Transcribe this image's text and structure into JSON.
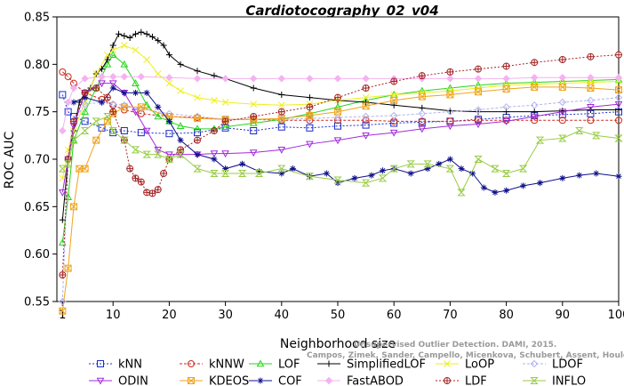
{
  "chart_data": {
    "type": "line",
    "title": "Cardiotocography_02_v04",
    "xlabel": "Neighborhood size",
    "ylabel": "ROC AUC",
    "xlim": [
      0,
      100
    ],
    "ylim": [
      0.55,
      0.85
    ],
    "xticks": [
      1,
      10,
      20,
      30,
      40,
      50,
      60,
      70,
      80,
      90,
      100
    ],
    "yticks": [
      0.55,
      0.6,
      0.65,
      0.7,
      0.75,
      0.8,
      0.85
    ],
    "ytick_labels": [
      "0.55",
      "0.60",
      "0.65",
      "0.70",
      "0.75",
      "0.80",
      "0.85"
    ],
    "grid": false,
    "legend_position": "bottom",
    "series": [
      {
        "name": "kNN",
        "color": "#1a2ccc",
        "marker": "square",
        "dash": "2,2",
        "x": [
          1,
          2,
          3,
          5,
          8,
          10,
          12,
          15,
          20,
          25,
          30,
          35,
          40,
          45,
          50,
          55,
          60,
          65,
          70,
          75,
          80,
          85,
          90,
          95,
          100
        ],
        "y": [
          0.768,
          0.75,
          0.745,
          0.74,
          0.733,
          0.728,
          0.73,
          0.728,
          0.727,
          0.728,
          0.733,
          0.73,
          0.734,
          0.733,
          0.735,
          0.736,
          0.738,
          0.739,
          0.74,
          0.742,
          0.744,
          0.746,
          0.747,
          0.748,
          0.75
        ]
      },
      {
        "name": "kNNW",
        "color": "#cc2a1e",
        "marker": "circle",
        "dash": "3,2",
        "x": [
          1,
          2,
          3,
          5,
          8,
          10,
          12,
          15,
          20,
          25,
          30,
          35,
          40,
          45,
          50,
          55,
          60,
          65,
          70,
          75,
          80,
          85,
          90,
          95,
          100
        ],
        "y": [
          0.792,
          0.787,
          0.78,
          0.77,
          0.763,
          0.757,
          0.752,
          0.748,
          0.745,
          0.744,
          0.742,
          0.742,
          0.741,
          0.741,
          0.741,
          0.741,
          0.74,
          0.74,
          0.74,
          0.741,
          0.741,
          0.741,
          0.741,
          0.741,
          0.741
        ]
      },
      {
        "name": "LOF",
        "color": "#27d41b",
        "marker": "triangle",
        "dash": "",
        "x": [
          1,
          2,
          3,
          5,
          7,
          9,
          10,
          12,
          14,
          16,
          18,
          20,
          22,
          25,
          28,
          30,
          35,
          40,
          45,
          50,
          55,
          60,
          65,
          70,
          75,
          80,
          85,
          90,
          95,
          100
        ],
        "y": [
          0.612,
          0.66,
          0.72,
          0.75,
          0.775,
          0.8,
          0.81,
          0.8,
          0.78,
          0.757,
          0.745,
          0.74,
          0.735,
          0.732,
          0.732,
          0.734,
          0.738,
          0.742,
          0.748,
          0.755,
          0.762,
          0.768,
          0.772,
          0.775,
          0.778,
          0.78,
          0.781,
          0.782,
          0.783,
          0.784
        ]
      },
      {
        "name": "SimplifiedLOF",
        "color": "#000000",
        "marker": "plus",
        "dash": "",
        "x": [
          1,
          2,
          3,
          4,
          5,
          6,
          7,
          8,
          9,
          10,
          11,
          12,
          13,
          14,
          15,
          16,
          17,
          18,
          19,
          20,
          22,
          25,
          28,
          30,
          35,
          40,
          45,
          50,
          55,
          60,
          65,
          70,
          75,
          80,
          85,
          90,
          95,
          100
        ],
        "y": [
          0.636,
          0.7,
          0.73,
          0.76,
          0.77,
          0.775,
          0.79,
          0.795,
          0.805,
          0.82,
          0.832,
          0.83,
          0.828,
          0.832,
          0.834,
          0.832,
          0.829,
          0.825,
          0.82,
          0.81,
          0.8,
          0.793,
          0.788,
          0.785,
          0.775,
          0.768,
          0.765,
          0.762,
          0.76,
          0.757,
          0.754,
          0.751,
          0.75,
          0.75,
          0.75,
          0.751,
          0.752,
          0.752
        ]
      },
      {
        "name": "LoOP",
        "color": "#f0ee1c",
        "marker": "x",
        "dash": "",
        "x": [
          1,
          2,
          3,
          5,
          7,
          9,
          10,
          12,
          14,
          16,
          18,
          20,
          22,
          25,
          28,
          30,
          35,
          40,
          45,
          50,
          55,
          60,
          65,
          70,
          75,
          80,
          85,
          90,
          95,
          100
        ],
        "y": [
          0.68,
          0.71,
          0.73,
          0.76,
          0.79,
          0.81,
          0.815,
          0.82,
          0.815,
          0.805,
          0.79,
          0.78,
          0.772,
          0.765,
          0.762,
          0.76,
          0.758,
          0.757,
          0.758,
          0.762,
          0.765,
          0.768,
          0.77,
          0.772,
          0.775,
          0.778,
          0.779,
          0.78,
          0.781,
          0.782
        ]
      },
      {
        "name": "LDOF",
        "color": "#b2b2f0",
        "marker": "diamond",
        "dash": "3,2",
        "x": [
          1,
          2,
          3,
          5,
          8,
          10,
          12,
          15,
          20,
          25,
          30,
          35,
          40,
          45,
          50,
          55,
          60,
          65,
          70,
          75,
          80,
          85,
          90,
          95,
          100
        ],
        "y": [
          0.55,
          0.7,
          0.74,
          0.758,
          0.76,
          0.758,
          0.757,
          0.753,
          0.748,
          0.745,
          0.742,
          0.742,
          0.742,
          0.743,
          0.744,
          0.745,
          0.746,
          0.748,
          0.75,
          0.752,
          0.755,
          0.757,
          0.76,
          0.762,
          0.765
        ]
      },
      {
        "name": "ODIN",
        "color": "#a22bd8",
        "marker": "triangle-down",
        "dash": "",
        "x": [
          1,
          2,
          3,
          5,
          8,
          10,
          12,
          14,
          16,
          18,
          20,
          22,
          25,
          28,
          30,
          35,
          40,
          45,
          50,
          55,
          60,
          65,
          70,
          75,
          80,
          85,
          90,
          95,
          100
        ],
        "y": [
          0.665,
          0.7,
          0.735,
          0.77,
          0.78,
          0.78,
          0.77,
          0.75,
          0.73,
          0.71,
          0.705,
          0.705,
          0.705,
          0.706,
          0.706,
          0.707,
          0.71,
          0.716,
          0.72,
          0.725,
          0.728,
          0.732,
          0.735,
          0.737,
          0.74,
          0.745,
          0.75,
          0.755,
          0.758
        ]
      },
      {
        "name": "KDEOS",
        "color": "#f0a31c",
        "marker": "square-x",
        "dash": "",
        "x": [
          1,
          2,
          3,
          4,
          5,
          7,
          9,
          10,
          12,
          15,
          20,
          25,
          30,
          35,
          40,
          45,
          50,
          55,
          60,
          65,
          70,
          75,
          80,
          85,
          90,
          95,
          100
        ],
        "y": [
          0.54,
          0.585,
          0.65,
          0.69,
          0.69,
          0.72,
          0.74,
          0.748,
          0.755,
          0.755,
          0.745,
          0.743,
          0.742,
          0.742,
          0.743,
          0.746,
          0.75,
          0.756,
          0.762,
          0.766,
          0.768,
          0.771,
          0.774,
          0.776,
          0.776,
          0.775,
          0.773
        ]
      },
      {
        "name": "COF",
        "color": "#10108c",
        "marker": "asterisk",
        "dash": "",
        "x": [
          3,
          5,
          8,
          10,
          12,
          14,
          16,
          18,
          20,
          22,
          25,
          28,
          30,
          33,
          36,
          40,
          42,
          45,
          48,
          50,
          53,
          56,
          58,
          60,
          63,
          66,
          68,
          70,
          72,
          74,
          76,
          78,
          80,
          83,
          86,
          90,
          93,
          96,
          100
        ],
        "y": [
          0.76,
          0.765,
          0.76,
          0.775,
          0.77,
          0.77,
          0.77,
          0.755,
          0.74,
          0.72,
          0.705,
          0.7,
          0.69,
          0.695,
          0.687,
          0.685,
          0.69,
          0.682,
          0.685,
          0.675,
          0.68,
          0.683,
          0.688,
          0.69,
          0.685,
          0.69,
          0.695,
          0.7,
          0.69,
          0.685,
          0.67,
          0.665,
          0.667,
          0.672,
          0.675,
          0.68,
          0.683,
          0.685,
          0.682
        ]
      },
      {
        "name": "FastABOD",
        "color": "#f4b2f0",
        "marker": "diamond-fill",
        "dash": "",
        "x": [
          1,
          2,
          3,
          5,
          8,
          10,
          12,
          15,
          20,
          25,
          30,
          35,
          40,
          45,
          50,
          55,
          60,
          65,
          70,
          75,
          80,
          85,
          90,
          95,
          100
        ],
        "y": [
          0.73,
          0.76,
          0.775,
          0.785,
          0.787,
          0.787,
          0.787,
          0.787,
          0.786,
          0.785,
          0.785,
          0.785,
          0.785,
          0.785,
          0.785,
          0.785,
          0.785,
          0.785,
          0.785,
          0.785,
          0.785,
          0.786,
          0.786,
          0.786,
          0.786
        ]
      },
      {
        "name": "LDF",
        "color": "#a42424",
        "marker": "circle-plus",
        "dash": "2,2",
        "x": [
          1,
          2,
          3,
          5,
          7,
          9,
          10,
          12,
          13,
          14,
          15,
          16,
          17,
          18,
          19,
          20,
          22,
          25,
          28,
          30,
          35,
          40,
          45,
          50,
          55,
          60,
          65,
          70,
          75,
          80,
          85,
          90,
          95,
          100
        ],
        "y": [
          0.578,
          0.7,
          0.74,
          0.77,
          0.775,
          0.765,
          0.75,
          0.72,
          0.69,
          0.68,
          0.676,
          0.665,
          0.664,
          0.668,
          0.685,
          0.7,
          0.71,
          0.72,
          0.73,
          0.74,
          0.745,
          0.75,
          0.755,
          0.765,
          0.775,
          0.782,
          0.788,
          0.792,
          0.795,
          0.798,
          0.802,
          0.805,
          0.808,
          0.81
        ]
      },
      {
        "name": "INFLO",
        "color": "#98cc44",
        "marker": "hourglass",
        "dash": "",
        "x": [
          1,
          2,
          3,
          5,
          7,
          9,
          10,
          12,
          14,
          16,
          18,
          20,
          22,
          25,
          28,
          30,
          33,
          36,
          40,
          45,
          50,
          55,
          58,
          60,
          63,
          66,
          70,
          72,
          75,
          78,
          80,
          83,
          86,
          90,
          93,
          96,
          100
        ],
        "y": [
          0.69,
          0.695,
          0.72,
          0.73,
          0.74,
          0.745,
          0.73,
          0.72,
          0.71,
          0.705,
          0.705,
          0.7,
          0.705,
          0.69,
          0.685,
          0.685,
          0.685,
          0.685,
          0.69,
          0.682,
          0.678,
          0.675,
          0.68,
          0.69,
          0.695,
          0.695,
          0.69,
          0.665,
          0.7,
          0.69,
          0.685,
          0.69,
          0.72,
          0.722,
          0.73,
          0.725,
          0.722
        ]
      }
    ]
  },
  "watermark": {
    "line1": "Unsupervised Outlier Detection. DAMI, 2015.",
    "line2": "Campos, Zimek, Sander, Campello, Micenkova, Schubert, Assent, Houle"
  }
}
